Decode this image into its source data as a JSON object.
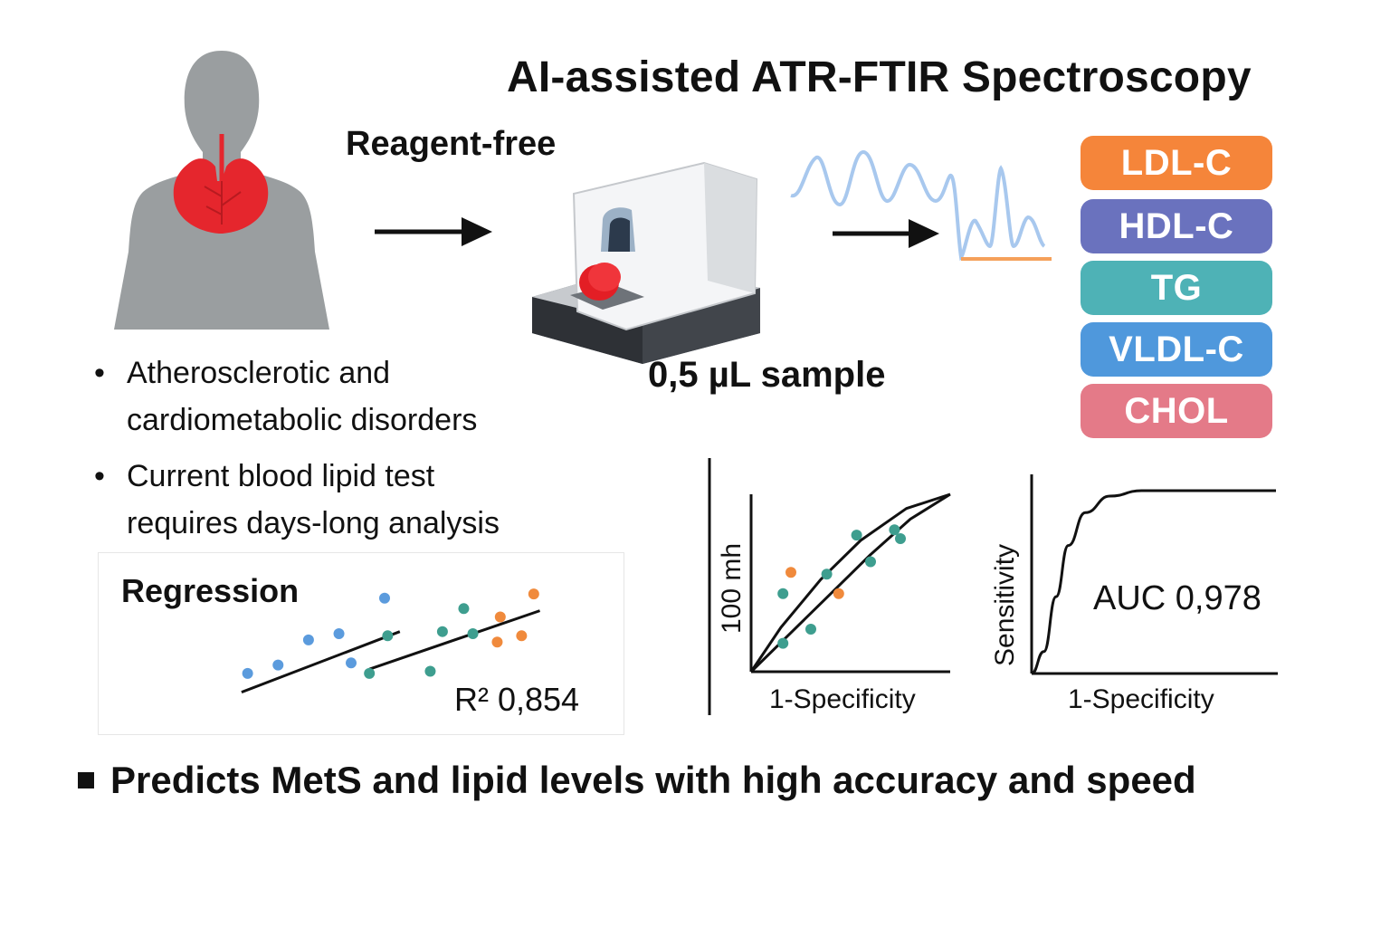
{
  "title": "AI-assisted ATR-FTIR Spectroscopy",
  "reagent_label": "Reagent-free",
  "sample_label": "0,5 µL sample",
  "bullets": [
    {
      "line1": "Atherosclerotic and",
      "line2": "cardiometabolic disorders"
    },
    {
      "line1": "Current blood lipid test",
      "line2": "requires days-long analysis"
    }
  ],
  "bullet_glyph": "•",
  "lipid_badges": [
    {
      "label": "LDL-C",
      "color": "#F5853A"
    },
    {
      "label": "HDL-C",
      "color": "#6A72BE"
    },
    {
      "label": "TG",
      "color": "#4EB2B6"
    },
    {
      "label": "VLDL-C",
      "color": "#4F98DC"
    },
    {
      "label": "CHOL",
      "color": "#E47A88"
    }
  ],
  "footer": "Predicts MetS and lipid levels with high accuracy and speed",
  "icons": {
    "person": "human-silhouette-icon",
    "heart": "heart-lungs-icon",
    "device": "spectrometer-device-icon",
    "spectrum": "spectrum-wave-icon",
    "arrow": "right-arrow-icon"
  },
  "colors": {
    "silhouette": "#9A9EA0",
    "heart": "#E5262D",
    "spectrum": "#A8C8EE",
    "baseline": "#F5A05A"
  },
  "chart_data": [
    {
      "type": "scatter",
      "title": "Regression",
      "annotation": "R² 0,854",
      "series": [
        {
          "name": "blue",
          "color": "#5B9BDD",
          "points": [
            [
              1,
              2.0
            ],
            [
              2,
              2.4
            ],
            [
              3,
              3.6
            ],
            [
              4,
              3.9
            ],
            [
              4.4,
              2.5
            ],
            [
              5.5,
              5.6
            ]
          ]
        },
        {
          "name": "teal",
          "color": "#3E9E8F",
          "points": [
            [
              5.0,
              2.0
            ],
            [
              5.6,
              3.8
            ],
            [
              7.0,
              2.1
            ],
            [
              7.4,
              4.0
            ],
            [
              8.1,
              5.1
            ],
            [
              8.4,
              3.9
            ]
          ]
        },
        {
          "name": "orange",
          "color": "#F08A3C",
          "points": [
            [
              9.2,
              3.5
            ],
            [
              9.3,
              4.7
            ],
            [
              10.0,
              3.8
            ],
            [
              10.4,
              5.8
            ]
          ]
        }
      ],
      "trend_lines": [
        {
          "from": [
            0.8,
            1.1
          ],
          "to": [
            6.0,
            4.0
          ]
        },
        {
          "from": [
            5.0,
            2.2
          ],
          "to": [
            10.6,
            5.0
          ]
        }
      ],
      "xlim": [
        0,
        11
      ],
      "ylim": [
        0,
        6.5
      ]
    },
    {
      "type": "line",
      "xlabel": "1-Specificity",
      "ylabel": "100 mh",
      "curves": [
        [
          [
            0,
            0
          ],
          [
            0.2,
            0.22
          ],
          [
            0.4,
            0.44
          ],
          [
            0.6,
            0.66
          ],
          [
            0.8,
            0.86
          ],
          [
            1.0,
            1.0
          ]
        ],
        [
          [
            0,
            0
          ],
          [
            0.15,
            0.25
          ],
          [
            0.35,
            0.52
          ],
          [
            0.55,
            0.74
          ],
          [
            0.78,
            0.92
          ],
          [
            1.0,
            1.0
          ]
        ]
      ],
      "series": [
        {
          "name": "teal",
          "color": "#3E9E8F",
          "points": [
            [
              0.16,
              0.44
            ],
            [
              0.3,
              0.24
            ],
            [
              0.38,
              0.55
            ],
            [
              0.53,
              0.77
            ],
            [
              0.6,
              0.62
            ],
            [
              0.72,
              0.8
            ],
            [
              0.75,
              0.75
            ],
            [
              0.16,
              0.16
            ]
          ]
        },
        {
          "name": "orange",
          "color": "#F08A3C",
          "points": [
            [
              0.2,
              0.56
            ],
            [
              0.44,
              0.44
            ]
          ]
        }
      ],
      "xlim": [
        0,
        1
      ],
      "ylim": [
        0,
        1
      ]
    },
    {
      "type": "line",
      "xlabel": "1-Specificity",
      "ylabel": "Sensitivity",
      "annotation": "AUC  0,978",
      "curve": [
        [
          0,
          0
        ],
        [
          0.05,
          0.12
        ],
        [
          0.1,
          0.42
        ],
        [
          0.15,
          0.7
        ],
        [
          0.22,
          0.88
        ],
        [
          0.32,
          0.97
        ],
        [
          0.45,
          1.0
        ],
        [
          1.0,
          1.0
        ]
      ],
      "xlim": [
        0,
        1
      ],
      "ylim": [
        0,
        1
      ]
    }
  ]
}
